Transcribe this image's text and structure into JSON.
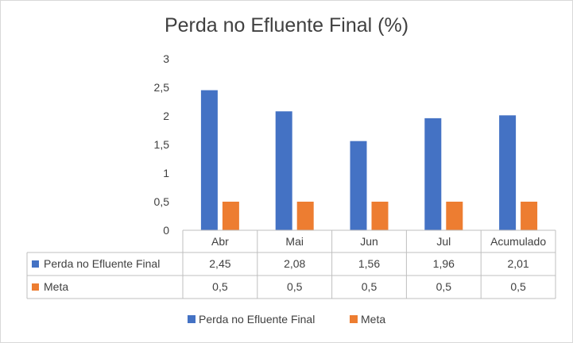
{
  "chart_data": {
    "type": "bar",
    "title": "Perda no Efluente Final (%)",
    "categories": [
      "Abr",
      "Mai",
      "Jun",
      "Jul",
      "Acumulado"
    ],
    "series": [
      {
        "name": "Perda no Efluente Final",
        "values": [
          2.45,
          2.08,
          1.56,
          1.96,
          2.01
        ],
        "labels": [
          "2,45",
          "2,08",
          "1,56",
          "1,96",
          "2,01"
        ],
        "color": "#4472C4"
      },
      {
        "name": "Meta",
        "values": [
          0.5,
          0.5,
          0.5,
          0.5,
          0.5
        ],
        "labels": [
          "0,5",
          "0,5",
          "0,5",
          "0,5",
          "0,5"
        ],
        "color": "#ED7D31"
      }
    ],
    "ylim": [
      0,
      3
    ],
    "yticks": [
      "0",
      "0,5",
      "1",
      "1,5",
      "2",
      "2,5",
      "3"
    ],
    "grid": false,
    "data_table": true,
    "legend": "bottom"
  }
}
